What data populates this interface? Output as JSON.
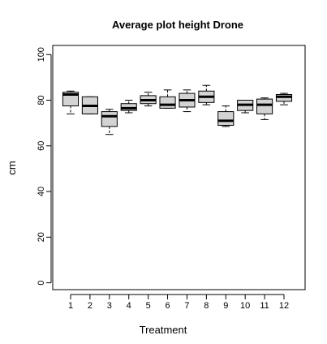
{
  "chart_data": {
    "type": "boxplot",
    "title": "Average plot height Drone",
    "xlabel": "Treatment",
    "ylabel": "cm",
    "ylim": [
      -3,
      104
    ],
    "yticks": [
      0,
      20,
      40,
      60,
      80,
      100
    ],
    "categories": [
      "1",
      "2",
      "3",
      "4",
      "5",
      "6",
      "7",
      "8",
      "9",
      "10",
      "11",
      "12"
    ],
    "boxes": [
      {
        "category": "1",
        "whisker_low": 74.0,
        "q1": 77.5,
        "median": 82.5,
        "q3": 83.5,
        "whisker_high": 84.0
      },
      {
        "category": "2",
        "whisker_low": 74.0,
        "q1": 74.0,
        "median": 77.5,
        "q3": 81.5,
        "whisker_high": 81.5
      },
      {
        "category": "3",
        "whisker_low": 65.0,
        "q1": 68.5,
        "median": 73.0,
        "q3": 75.0,
        "whisker_high": 76.0
      },
      {
        "category": "4",
        "whisker_low": 74.5,
        "q1": 75.5,
        "median": 76.5,
        "q3": 78.5,
        "whisker_high": 80.0
      },
      {
        "category": "5",
        "whisker_low": 77.5,
        "q1": 78.5,
        "median": 80.0,
        "q3": 82.0,
        "whisker_high": 83.5
      },
      {
        "category": "6",
        "whisker_low": 76.5,
        "q1": 76.5,
        "median": 78.0,
        "q3": 81.5,
        "whisker_high": 84.5
      },
      {
        "category": "7",
        "whisker_low": 75.0,
        "q1": 77.0,
        "median": 80.0,
        "q3": 83.0,
        "whisker_high": 84.5
      },
      {
        "category": "8",
        "whisker_low": 78.0,
        "q1": 79.0,
        "median": 81.5,
        "q3": 84.0,
        "whisker_high": 86.5
      },
      {
        "category": "9",
        "whisker_low": 68.5,
        "q1": 69.0,
        "median": 71.0,
        "q3": 75.0,
        "whisker_high": 77.5
      },
      {
        "category": "10",
        "whisker_low": 74.5,
        "q1": 75.5,
        "median": 78.0,
        "q3": 80.0,
        "whisker_high": 80.0
      },
      {
        "category": "11",
        "whisker_low": 71.5,
        "q1": 74.0,
        "median": 78.0,
        "q3": 80.5,
        "whisker_high": 81.0
      },
      {
        "category": "12",
        "whisker_low": 78.0,
        "q1": 79.5,
        "median": 81.5,
        "q3": 82.5,
        "whisker_high": 83.0
      }
    ],
    "grid": false,
    "legend": "none",
    "colors": {
      "box_fill": "#d3d3d3",
      "stroke": "#000000",
      "background": "#ffffff"
    }
  }
}
